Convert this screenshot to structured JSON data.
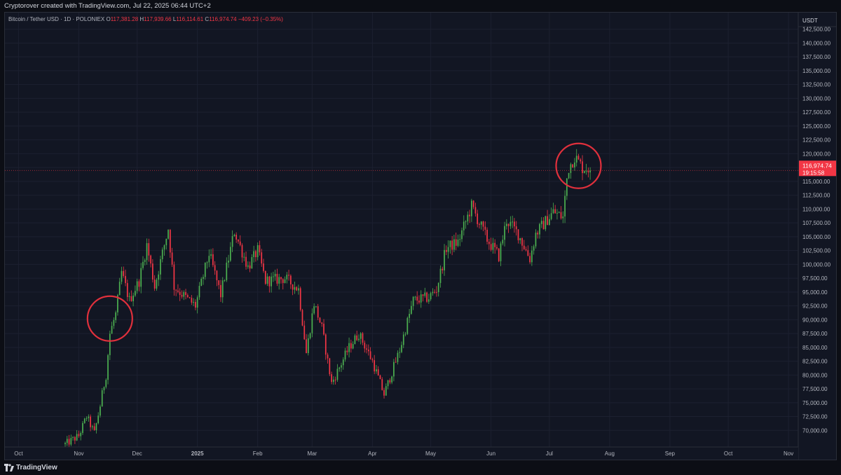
{
  "header": {
    "caption": "Cryptorover created with TradingView.com, Jul 22, 2025 06:44 UTC+2"
  },
  "legend": {
    "symbol": "Bitcoin / Tether USD · 1D · POLONIEX",
    "open_key": "O",
    "open": "117,381.28",
    "high_key": "H",
    "high": "117,939.66",
    "low_key": "L",
    "low": "116,114.61",
    "close_key": "C",
    "close": "116,974.74",
    "change": "−409.23 (−0.35%)"
  },
  "price_axis": {
    "currency": "USDT",
    "last_price": "116,974.74",
    "countdown": "19:15:58",
    "behind_label": "117,500.00"
  },
  "footer": {
    "brand": "TradingView"
  },
  "colors": {
    "up": "#26a69a",
    "up_bright": "#4caf50",
    "down": "#f23645",
    "grid": "#1c2030",
    "background": "#121623",
    "circle": "#e0303c"
  },
  "chart_data": {
    "type": "candlestick",
    "y_axis_ticks": [
      70000,
      72500,
      75000,
      77500,
      80000,
      82500,
      85000,
      87500,
      90000,
      92500,
      95000,
      97500,
      100000,
      102500,
      105000,
      107500,
      110000,
      112500,
      115000,
      117500,
      120000,
      122500,
      125000,
      127500,
      130000,
      132500,
      135000,
      137500,
      140000,
      142500
    ],
    "x_axis_ticks": [
      {
        "label": "Oct",
        "date": "2024-10-01"
      },
      {
        "label": "Nov",
        "date": "2024-11-01"
      },
      {
        "label": "Dec",
        "date": "2024-12-01"
      },
      {
        "label": "2025",
        "date": "2025-01-01"
      },
      {
        "label": "Feb",
        "date": "2025-02-01"
      },
      {
        "label": "Mar",
        "date": "2025-03-01"
      },
      {
        "label": "Apr",
        "date": "2025-04-01"
      },
      {
        "label": "May",
        "date": "2025-05-01"
      },
      {
        "label": "Jun",
        "date": "2025-06-01"
      },
      {
        "label": "Jul",
        "date": "2025-07-01"
      },
      {
        "label": "Aug",
        "date": "2025-08-01"
      },
      {
        "label": "Sep",
        "date": "2025-09-01"
      },
      {
        "label": "Oct",
        "date": "2025-10-01"
      },
      {
        "label": "Nov",
        "date": "2025-11-01"
      }
    ],
    "y_range": [
      67000,
      145500
    ],
    "x_range": [
      "2024-09-24",
      "2025-11-06"
    ],
    "price_path": [
      {
        "date": "2024-10-25",
        "close": 67500
      },
      {
        "date": "2024-11-01",
        "close": 69000
      },
      {
        "date": "2024-11-05",
        "close": 72500
      },
      {
        "date": "2024-11-09",
        "close": 69500
      },
      {
        "date": "2024-11-12",
        "close": 74500
      },
      {
        "date": "2024-11-13",
        "close": 76500
      },
      {
        "date": "2024-11-15",
        "close": 80000
      },
      {
        "date": "2024-11-17",
        "close": 87500
      },
      {
        "date": "2024-11-20",
        "close": 91000
      },
      {
        "date": "2024-11-23",
        "close": 98500
      },
      {
        "date": "2024-11-27",
        "close": 93500
      },
      {
        "date": "2024-12-02",
        "close": 97000
      },
      {
        "date": "2024-12-06",
        "close": 103500
      },
      {
        "date": "2024-12-10",
        "close": 96000
      },
      {
        "date": "2024-12-17",
        "close": 106500
      },
      {
        "date": "2024-12-20",
        "close": 96000
      },
      {
        "date": "2024-12-26",
        "close": 94000
      },
      {
        "date": "2024-12-31",
        "close": 92500
      },
      {
        "date": "2025-01-07",
        "close": 102000
      },
      {
        "date": "2025-01-13",
        "close": 94500
      },
      {
        "date": "2025-01-20",
        "close": 106000
      },
      {
        "date": "2025-01-27",
        "close": 99500
      },
      {
        "date": "2025-02-01",
        "close": 102500
      },
      {
        "date": "2025-02-05",
        "close": 97000
      },
      {
        "date": "2025-02-15",
        "close": 97500
      },
      {
        "date": "2025-02-22",
        "close": 95500
      },
      {
        "date": "2025-02-26",
        "close": 84000
      },
      {
        "date": "2025-03-02",
        "close": 93000
      },
      {
        "date": "2025-03-06",
        "close": 88500
      },
      {
        "date": "2025-03-11",
        "close": 78500
      },
      {
        "date": "2025-03-20",
        "close": 85000
      },
      {
        "date": "2025-03-25",
        "close": 87500
      },
      {
        "date": "2025-04-01",
        "close": 82500
      },
      {
        "date": "2025-04-07",
        "close": 76500
      },
      {
        "date": "2025-04-10",
        "close": 79500
      },
      {
        "date": "2025-04-15",
        "close": 84500
      },
      {
        "date": "2025-04-22",
        "close": 93500
      },
      {
        "date": "2025-04-30",
        "close": 94000
      },
      {
        "date": "2025-05-04",
        "close": 95500
      },
      {
        "date": "2025-05-09",
        "close": 103000
      },
      {
        "date": "2025-05-15",
        "close": 104000
      },
      {
        "date": "2025-05-22",
        "close": 110500
      },
      {
        "date": "2025-05-30",
        "close": 104500
      },
      {
        "date": "2025-06-05",
        "close": 101500
      },
      {
        "date": "2025-06-09",
        "close": 108000
      },
      {
        "date": "2025-06-15",
        "close": 105500
      },
      {
        "date": "2025-06-21",
        "close": 101000
      },
      {
        "date": "2025-06-24",
        "close": 105500
      },
      {
        "date": "2025-07-03",
        "close": 109500
      },
      {
        "date": "2025-07-08",
        "close": 108500
      },
      {
        "date": "2025-07-10",
        "close": 115500
      },
      {
        "date": "2025-07-11",
        "close": 117500
      },
      {
        "date": "2025-07-14",
        "close": 119500
      },
      {
        "date": "2025-07-16",
        "close": 118500
      },
      {
        "date": "2025-07-18",
        "close": 117500
      },
      {
        "date": "2025-07-21",
        "close": 117400
      },
      {
        "date": "2025-07-22",
        "close": 116974.74
      }
    ],
    "annotations": [
      {
        "type": "circle",
        "center_date": "2024-11-17",
        "center_price": 90200
      },
      {
        "type": "circle",
        "center_date": "2025-07-16",
        "center_price": 117800
      }
    ]
  }
}
